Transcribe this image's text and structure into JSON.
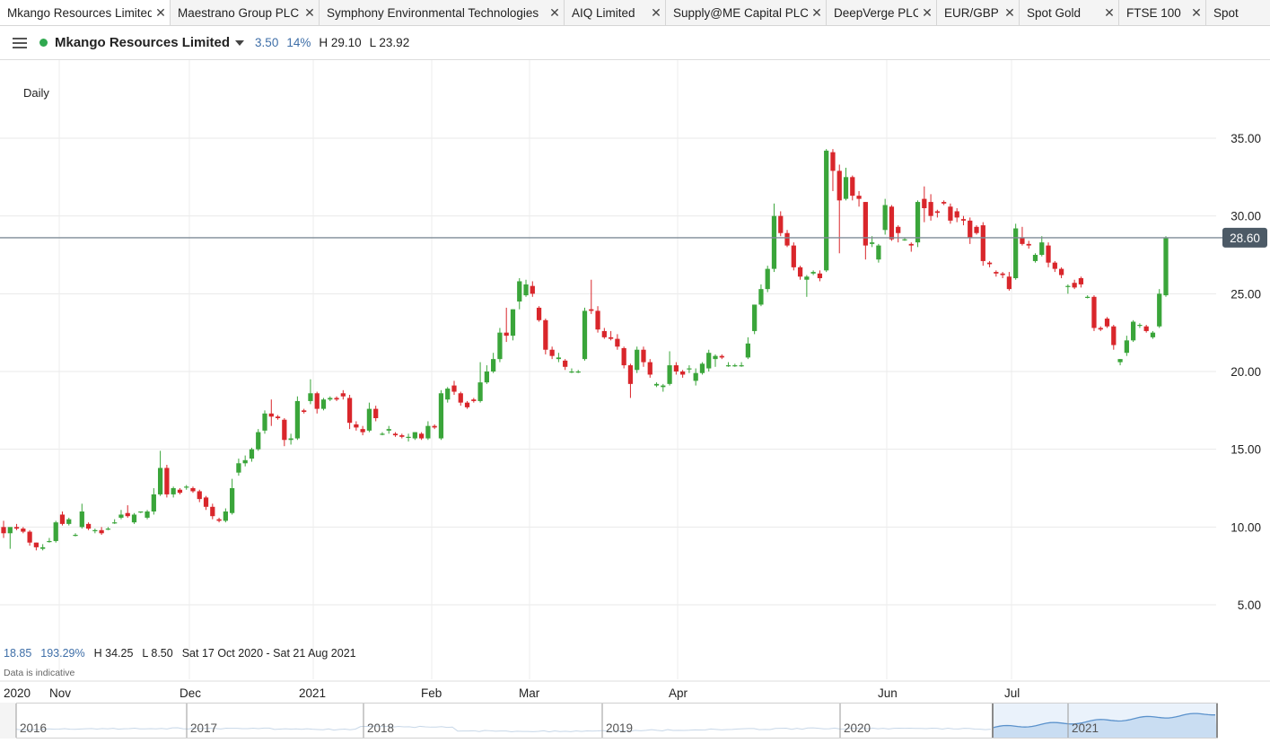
{
  "tabs": [
    {
      "label": "Mkango Resources Limited",
      "active": true
    },
    {
      "label": "Maestrano Group PLC",
      "active": false
    },
    {
      "label": "Symphony Environmental Technologies",
      "active": false
    },
    {
      "label": "AIQ Limited",
      "active": false
    },
    {
      "label": "Supply@ME Capital PLC",
      "active": false
    },
    {
      "label": "DeepVerge PLC",
      "active": false
    },
    {
      "label": "EUR/GBP",
      "active": false
    },
    {
      "label": "Spot Gold",
      "active": false
    },
    {
      "label": "FTSE 100",
      "active": false
    },
    {
      "label": "Spot",
      "active": false
    }
  ],
  "header": {
    "instrument": "Mkango Resources Limited",
    "change": "3.50",
    "change_pct": "14%",
    "high": "H 29.10",
    "low": "L 23.92"
  },
  "interval": "Daily",
  "stats": {
    "change": "18.85",
    "change_pct": "193.29%",
    "high": "H 34.25",
    "low": "L 8.50",
    "range": "Sat 17 Oct 2020 - Sat 21 Aug 2021"
  },
  "disclaimer": "Data is indicative",
  "colors": {
    "up": "#3aa53a",
    "down": "#d9262b",
    "last_price_line": "#7f8c97",
    "last_price_badge": "#4c5a66",
    "navigator_fill": "#c9ddf2",
    "navigator_line": "#5b92cc"
  },
  "navigator": {
    "years": [
      "2016",
      "2017",
      "2018",
      "2019",
      "2020",
      "2021"
    ]
  },
  "chart_data": {
    "type": "candlestick",
    "title": "Mkango Resources Limited",
    "interval": "Daily",
    "y_ticks": [
      "35.00",
      "30.00",
      "25.00",
      "20.00",
      "15.00",
      "10.00",
      "5.00"
    ],
    "ylim": [
      2,
      37
    ],
    "x_labels": [
      "2020",
      "Nov",
      "Dec",
      "2021",
      "Feb",
      "Mar",
      "Apr",
      "Jun",
      "Jul"
    ],
    "last_price": "28.60",
    "last_value": 28.6,
    "grid": true,
    "ohlc": [
      [
        10.0,
        10.4,
        9.3,
        9.6
      ],
      [
        9.6,
        9.8,
        8.6,
        10.0
      ],
      [
        10.0,
        10.2,
        9.8,
        9.9
      ],
      [
        9.9,
        10.0,
        9.6,
        9.7
      ],
      [
        9.7,
        9.8,
        8.8,
        9.0
      ],
      [
        9.0,
        9.0,
        8.5,
        8.7
      ],
      [
        8.6,
        8.9,
        8.5,
        8.7
      ],
      [
        9.1,
        9.3,
        9.0,
        9.1
      ],
      [
        9.1,
        10.4,
        9.0,
        10.3
      ],
      [
        10.8,
        11.0,
        10.1,
        10.2
      ],
      [
        10.2,
        10.6,
        10.1,
        10.5
      ],
      [
        9.5,
        9.6,
        9.4,
        9.5
      ],
      [
        10.0,
        11.5,
        9.9,
        11.0
      ],
      [
        10.2,
        10.3,
        9.8,
        9.9
      ],
      [
        9.8,
        9.9,
        9.6,
        9.8
      ],
      [
        9.8,
        10.0,
        9.5,
        9.6
      ],
      [
        9.9,
        10.0,
        9.8,
        9.9
      ],
      [
        10.3,
        10.5,
        10.2,
        10.3
      ],
      [
        10.6,
        11.1,
        10.5,
        10.8
      ],
      [
        10.9,
        11.4,
        10.6,
        10.7
      ],
      [
        10.3,
        10.9,
        10.2,
        10.8
      ],
      [
        11.0,
        11.0,
        10.9,
        11.0
      ],
      [
        10.6,
        11.1,
        10.5,
        11.0
      ],
      [
        11.0,
        12.5,
        10.8,
        12.1
      ],
      [
        12.1,
        14.9,
        12.0,
        13.8
      ],
      [
        13.8,
        14.0,
        11.9,
        12.1
      ],
      [
        12.1,
        12.6,
        11.9,
        12.5
      ],
      [
        12.4,
        12.5,
        12.1,
        12.2
      ],
      [
        12.6,
        12.7,
        12.4,
        12.6
      ],
      [
        12.5,
        12.6,
        12.2,
        12.3
      ],
      [
        12.3,
        12.4,
        11.6,
        11.8
      ],
      [
        11.9,
        12.0,
        11.1,
        11.3
      ],
      [
        11.3,
        11.5,
        10.5,
        10.7
      ],
      [
        10.5,
        10.6,
        10.3,
        10.4
      ],
      [
        10.4,
        11.2,
        10.3,
        11.0
      ],
      [
        10.9,
        13.1,
        10.8,
        12.5
      ],
      [
        13.5,
        14.4,
        13.3,
        14.1
      ],
      [
        14.1,
        14.6,
        13.9,
        14.3
      ],
      [
        14.4,
        15.1,
        14.2,
        15.0
      ],
      [
        15.0,
        16.3,
        14.9,
        16.1
      ],
      [
        16.2,
        17.5,
        16.0,
        17.3
      ],
      [
        17.3,
        18.2,
        16.5,
        17.1
      ],
      [
        17.1,
        17.2,
        16.9,
        17.0
      ],
      [
        16.9,
        17.0,
        15.2,
        15.6
      ],
      [
        15.6,
        16.0,
        15.3,
        15.7
      ],
      [
        15.7,
        18.4,
        15.6,
        18.1
      ],
      [
        17.5,
        17.6,
        17.3,
        17.4
      ],
      [
        18.1,
        19.5,
        17.9,
        18.6
      ],
      [
        18.6,
        18.7,
        17.3,
        17.6
      ],
      [
        17.6,
        18.3,
        17.5,
        18.2
      ],
      [
        18.2,
        18.4,
        18.1,
        18.3
      ],
      [
        18.3,
        18.4,
        18.1,
        18.2
      ],
      [
        18.6,
        18.8,
        18.2,
        18.4
      ],
      [
        18.3,
        18.5,
        16.3,
        16.7
      ],
      [
        16.6,
        16.8,
        16.2,
        16.4
      ],
      [
        16.3,
        16.5,
        15.9,
        16.1
      ],
      [
        16.2,
        18.0,
        16.1,
        17.6
      ],
      [
        17.6,
        17.8,
        16.8,
        17.0
      ],
      [
        16.0,
        16.1,
        15.9,
        16.0
      ],
      [
        16.2,
        16.5,
        16.0,
        16.3
      ],
      [
        16.0,
        16.1,
        15.8,
        15.9
      ],
      [
        15.9,
        16.0,
        15.7,
        15.8
      ],
      [
        15.8,
        16.0,
        15.5,
        15.8
      ],
      [
        15.7,
        16.1,
        15.6,
        16.1
      ],
      [
        16.0,
        16.1,
        15.6,
        15.7
      ],
      [
        15.7,
        16.8,
        15.6,
        16.5
      ],
      [
        16.5,
        16.6,
        16.3,
        16.4
      ],
      [
        15.7,
        18.8,
        15.6,
        18.6
      ],
      [
        18.2,
        19.0,
        18.0,
        18.9
      ],
      [
        19.1,
        19.4,
        18.5,
        18.7
      ],
      [
        18.6,
        18.7,
        17.8,
        18.0
      ],
      [
        18.0,
        18.1,
        17.6,
        17.7
      ],
      [
        18.2,
        18.3,
        18.0,
        18.1
      ],
      [
        18.1,
        20.6,
        18.0,
        19.3
      ],
      [
        19.3,
        20.4,
        19.2,
        20.0
      ],
      [
        20.0,
        21.2,
        19.9,
        20.8
      ],
      [
        20.8,
        22.8,
        20.6,
        22.5
      ],
      [
        22.5,
        24.1,
        21.9,
        22.3
      ],
      [
        22.3,
        24.0,
        22.0,
        24.0
      ],
      [
        24.5,
        26.0,
        24.0,
        25.8
      ],
      [
        24.9,
        25.9,
        24.8,
        25.6
      ],
      [
        25.5,
        25.8,
        24.8,
        25.0
      ],
      [
        24.1,
        24.2,
        23.2,
        23.3
      ],
      [
        23.3,
        23.4,
        21.1,
        21.4
      ],
      [
        21.4,
        21.6,
        20.8,
        21.0
      ],
      [
        20.8,
        21.2,
        20.6,
        20.9
      ],
      [
        20.7,
        20.8,
        20.1,
        20.3
      ],
      [
        20.0,
        20.2,
        19.9,
        20.0
      ],
      [
        20.0,
        20.1,
        19.9,
        20.0
      ],
      [
        20.8,
        24.1,
        20.7,
        23.9
      ],
      [
        24.0,
        25.9,
        23.7,
        23.9
      ],
      [
        23.9,
        24.2,
        22.5,
        22.7
      ],
      [
        22.6,
        22.8,
        22.1,
        22.2
      ],
      [
        22.2,
        22.6,
        22.0,
        22.1
      ],
      [
        22.1,
        22.4,
        21.4,
        21.6
      ],
      [
        21.5,
        21.6,
        20.2,
        20.4
      ],
      [
        20.4,
        20.5,
        18.3,
        19.2
      ],
      [
        20.1,
        21.6,
        19.9,
        21.4
      ],
      [
        21.4,
        21.6,
        20.3,
        20.6
      ],
      [
        20.6,
        20.8,
        19.6,
        19.8
      ],
      [
        19.1,
        19.3,
        19.0,
        19.2
      ],
      [
        19.0,
        19.2,
        18.7,
        19.1
      ],
      [
        19.2,
        21.3,
        19.1,
        20.4
      ],
      [
        20.4,
        20.6,
        19.8,
        20.0
      ],
      [
        20.0,
        20.1,
        19.6,
        19.8
      ],
      [
        20.2,
        20.4,
        19.9,
        20.2
      ],
      [
        19.4,
        20.2,
        19.1,
        19.9
      ],
      [
        19.9,
        20.6,
        19.8,
        20.5
      ],
      [
        20.2,
        21.4,
        20.0,
        21.2
      ],
      [
        20.8,
        21.1,
        20.3,
        21.0
      ],
      [
        21.0,
        21.1,
        20.8,
        20.9
      ],
      [
        20.4,
        20.6,
        20.3,
        20.4
      ],
      [
        20.4,
        20.5,
        20.3,
        20.4
      ],
      [
        20.4,
        20.6,
        20.3,
        20.4
      ],
      [
        20.9,
        22.2,
        20.8,
        21.8
      ],
      [
        22.6,
        24.3,
        22.4,
        24.3
      ],
      [
        24.3,
        25.6,
        24.2,
        25.3
      ],
      [
        25.3,
        26.8,
        25.1,
        26.6
      ],
      [
        26.6,
        30.8,
        26.4,
        30.0
      ],
      [
        30.0,
        30.3,
        28.7,
        28.9
      ],
      [
        28.9,
        29.1,
        28.0,
        28.1
      ],
      [
        28.1,
        28.3,
        26.5,
        26.7
      ],
      [
        26.7,
        26.8,
        25.9,
        26.1
      ],
      [
        25.9,
        26.2,
        24.8,
        26.1
      ],
      [
        26.3,
        26.5,
        26.2,
        26.4
      ],
      [
        26.3,
        26.5,
        25.8,
        26.0
      ],
      [
        26.5,
        34.3,
        26.4,
        34.2
      ],
      [
        34.1,
        34.3,
        31.6,
        32.9
      ],
      [
        32.9,
        33.3,
        27.6,
        31.0
      ],
      [
        31.1,
        33.1,
        31.0,
        32.5
      ],
      [
        32.5,
        32.6,
        31.0,
        31.3
      ],
      [
        31.3,
        31.6,
        30.6,
        31.1
      ],
      [
        30.9,
        30.9,
        27.2,
        28.1
      ],
      [
        28.2,
        28.7,
        28.0,
        28.3
      ],
      [
        27.2,
        28.2,
        27.0,
        28.1
      ],
      [
        29.1,
        31.1,
        28.8,
        30.7
      ],
      [
        30.6,
        30.7,
        28.4,
        28.5
      ],
      [
        29.3,
        29.4,
        28.3,
        28.9
      ],
      [
        28.5,
        28.6,
        28.4,
        28.5
      ],
      [
        28.2,
        28.3,
        27.7,
        28.1
      ],
      [
        28.3,
        31.0,
        28.0,
        30.9
      ],
      [
        31.1,
        31.9,
        29.6,
        30.5
      ],
      [
        30.9,
        31.4,
        29.7,
        30.0
      ],
      [
        30.3,
        30.4,
        29.9,
        30.2
      ],
      [
        30.9,
        31.0,
        30.7,
        30.8
      ],
      [
        30.6,
        30.8,
        29.5,
        29.7
      ],
      [
        30.3,
        30.5,
        29.6,
        29.9
      ],
      [
        29.8,
        30.0,
        29.4,
        29.7
      ],
      [
        29.7,
        29.9,
        28.2,
        28.6
      ],
      [
        29.3,
        29.4,
        28.8,
        28.9
      ],
      [
        29.4,
        29.6,
        26.8,
        27.1
      ],
      [
        27.0,
        27.1,
        26.7,
        26.9
      ],
      [
        26.4,
        26.5,
        26.1,
        26.3
      ],
      [
        26.3,
        26.4,
        26.0,
        26.2
      ],
      [
        26.1,
        26.4,
        25.2,
        25.3
      ],
      [
        26.0,
        29.5,
        25.9,
        29.2
      ],
      [
        28.6,
        29.3,
        28.1,
        28.2
      ],
      [
        28.2,
        28.4,
        27.9,
        28.1
      ],
      [
        27.1,
        27.6,
        27.0,
        27.5
      ],
      [
        27.5,
        28.7,
        27.4,
        28.3
      ],
      [
        28.1,
        28.3,
        26.7,
        27.0
      ],
      [
        27.0,
        27.1,
        26.4,
        26.6
      ],
      [
        26.6,
        26.7,
        26.0,
        26.2
      ],
      [
        25.5,
        25.6,
        25.0,
        25.5
      ],
      [
        25.7,
        25.9,
        25.3,
        25.4
      ],
      [
        26.0,
        26.1,
        25.4,
        25.6
      ],
      [
        24.8,
        24.9,
        24.7,
        24.8
      ],
      [
        24.8,
        24.9,
        22.6,
        22.8
      ],
      [
        22.8,
        22.9,
        22.6,
        22.7
      ],
      [
        23.4,
        23.5,
        22.8,
        22.9
      ],
      [
        22.9,
        23.0,
        21.4,
        21.7
      ],
      [
        20.6,
        20.8,
        20.4,
        20.8
      ],
      [
        21.2,
        22.3,
        21.0,
        22.0
      ],
      [
        22.0,
        23.3,
        21.9,
        23.2
      ],
      [
        23.0,
        23.1,
        22.8,
        23.0
      ],
      [
        22.9,
        23.0,
        22.5,
        22.6
      ],
      [
        22.2,
        22.6,
        22.1,
        22.5
      ],
      [
        22.9,
        25.3,
        22.8,
        25.0
      ],
      [
        24.9,
        28.7,
        24.8,
        28.6
      ]
    ]
  }
}
